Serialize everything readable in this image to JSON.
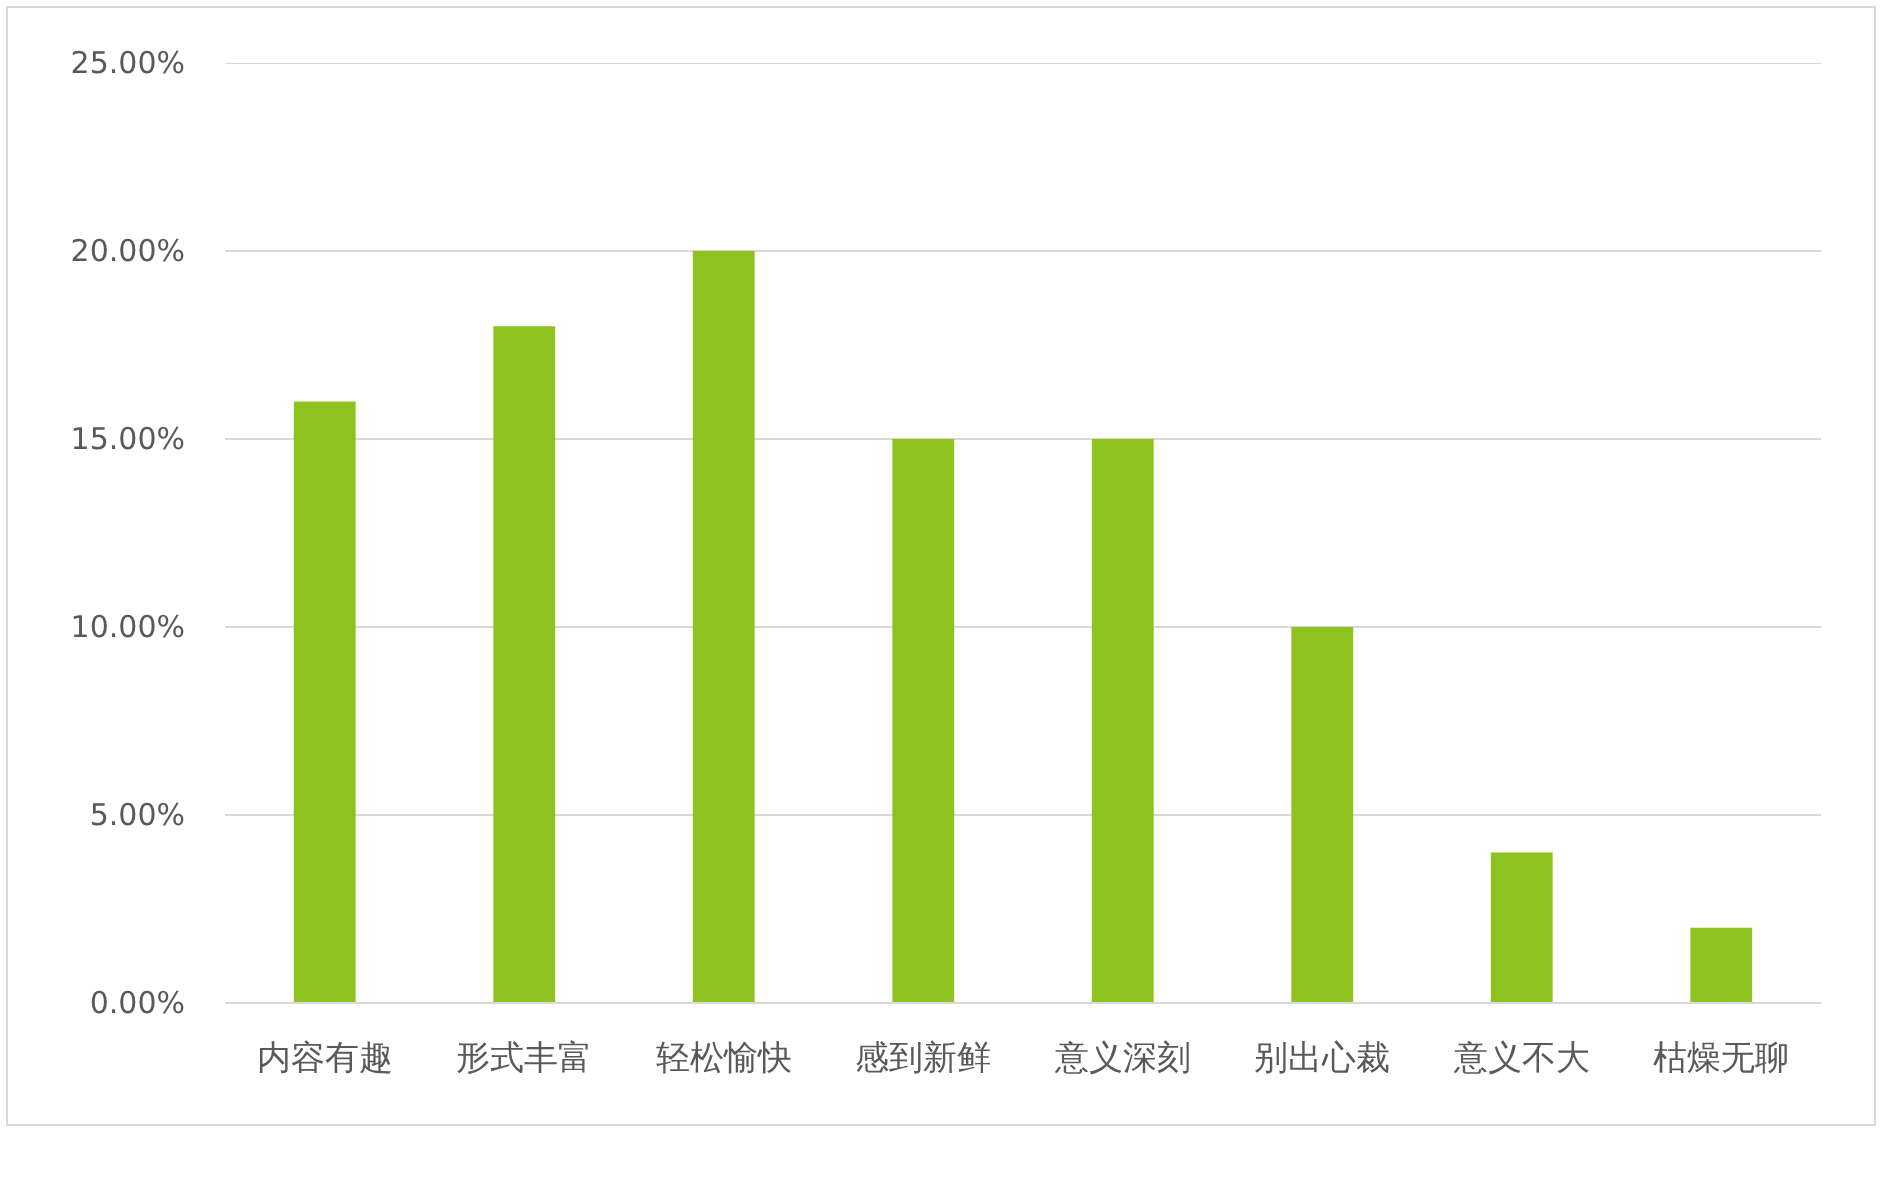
{
  "chart_data": {
    "type": "bar",
    "categories": [
      "内容有趣",
      "形式丰富",
      "轻松愉快",
      "感到新鲜",
      "意义深刻",
      "别出心裁",
      "意义不大",
      "枯燥无聊"
    ],
    "values": [
      16,
      18,
      20,
      15,
      15,
      10,
      4,
      2
    ],
    "color": "#8dc21f",
    "ylim": [
      0,
      25
    ],
    "yticks": [
      {
        "value": 0,
        "label": "0.00%"
      },
      {
        "value": 5,
        "label": "5.00%"
      },
      {
        "value": 10,
        "label": "10.00%"
      },
      {
        "value": 15,
        "label": "15.00%"
      },
      {
        "value": 20,
        "label": "20.00%"
      },
      {
        "value": 25,
        "label": "25.00%"
      }
    ],
    "grid": "y"
  }
}
